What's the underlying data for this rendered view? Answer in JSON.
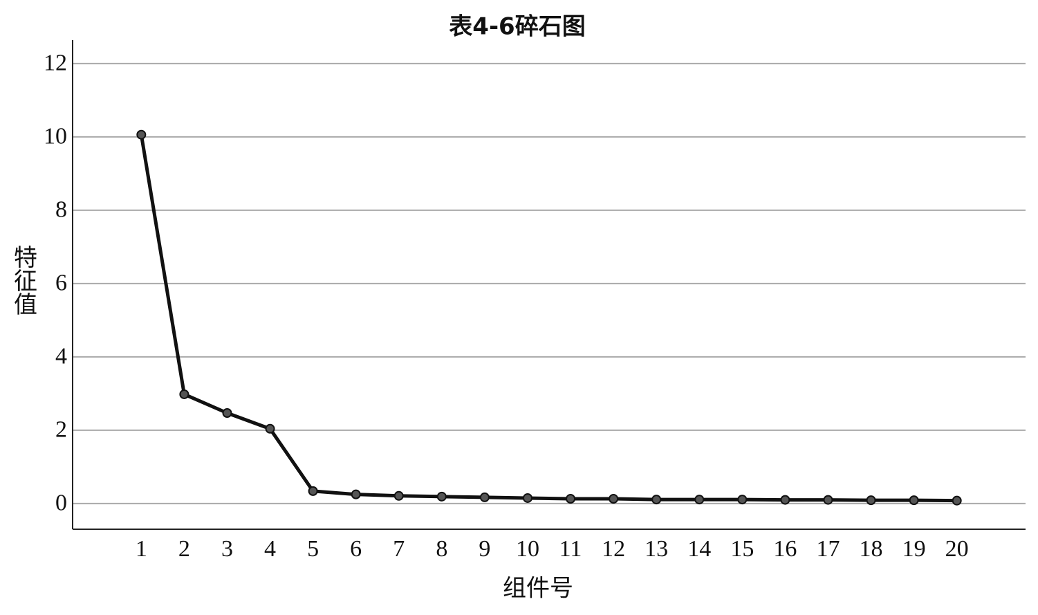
{
  "chart_data": {
    "type": "line",
    "title": "表4-6碎石图",
    "x_label": "组件号",
    "y_label": "特征值",
    "x": [
      1,
      2,
      3,
      4,
      5,
      6,
      7,
      8,
      9,
      10,
      11,
      12,
      13,
      14,
      15,
      16,
      17,
      18,
      19,
      20
    ],
    "series": [
      {
        "name": "特征值",
        "color": "#111111",
        "values": [
          10.06,
          2.98,
          2.47,
          2.04,
          0.34,
          0.25,
          0.21,
          0.19,
          0.17,
          0.15,
          0.13,
          0.13,
          0.11,
          0.11,
          0.11,
          0.1,
          0.1,
          0.09,
          0.09,
          0.08
        ]
      }
    ],
    "xlim": [
      -0.6,
      21.6
    ],
    "xticks": [
      1,
      2,
      3,
      4,
      5,
      6,
      7,
      8,
      9,
      10,
      11,
      12,
      13,
      14,
      15,
      16,
      17,
      18,
      19,
      20
    ],
    "ylim": [
      -0.7,
      12.64
    ],
    "yticks": [
      0,
      2,
      4,
      6,
      8,
      10,
      12
    ],
    "grid": true
  }
}
